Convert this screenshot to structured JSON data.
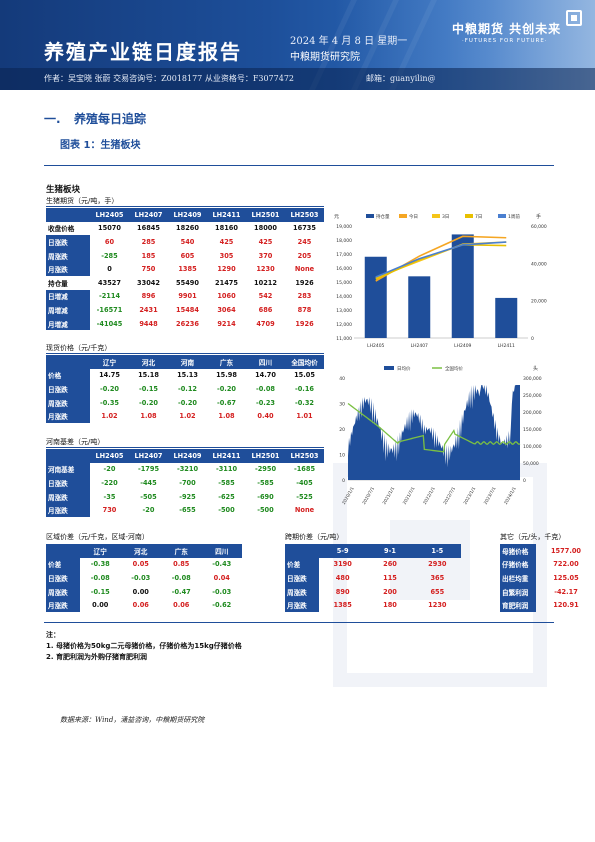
{
  "header": {
    "title": "养殖产业链日度报告",
    "date": "2024 年 4 月 8 日 星期一",
    "institute": "中粮期货研究院",
    "logo_cn": "中粮期货 共创未来",
    "logo_en": "·FUTURES FOR FUTURE·",
    "authors": "作者：吴宝晓   张蔚   交易咨询号：Z0018177 从业资格号：F3077472",
    "email": "邮箱：guanyilin@"
  },
  "section": {
    "number": "一.",
    "title": "养殖每日追踪"
  },
  "figure": {
    "title": "图表 1：生猪板块"
  },
  "panel": {
    "title": "生猪板块"
  },
  "futures": {
    "title": "生猪期货（元/吨，手）",
    "headers": [
      "",
      "LH2405",
      "LH2407",
      "LH2409",
      "LH2411",
      "LH2501",
      "LH2503"
    ],
    "rows": [
      {
        "label": "收盘价格",
        "values": [
          "15070",
          "16845",
          "18260",
          "18160",
          "18000",
          "16735"
        ],
        "colors": [
          "blk",
          "blk",
          "blk",
          "blk",
          "blk",
          "blk"
        ],
        "rlabel": false
      },
      {
        "label": "日涨跌",
        "values": [
          "60",
          "285",
          "540",
          "425",
          "425",
          "245"
        ],
        "colors": [
          "red",
          "red",
          "red",
          "red",
          "red",
          "red"
        ],
        "rlabel": true
      },
      {
        "label": "周涨跌",
        "values": [
          "-285",
          "185",
          "605",
          "305",
          "370",
          "205"
        ],
        "colors": [
          "green",
          "red",
          "red",
          "red",
          "red",
          "red"
        ],
        "rlabel": true
      },
      {
        "label": "月涨跌",
        "values": [
          "0",
          "750",
          "1385",
          "1290",
          "1230",
          "None"
        ],
        "colors": [
          "blk",
          "red",
          "red",
          "red",
          "red",
          "red"
        ],
        "rlabel": true
      },
      {
        "label": "持仓量",
        "values": [
          "43527",
          "33042",
          "55490",
          "21475",
          "10212",
          "1926"
        ],
        "colors": [
          "blk",
          "blk",
          "blk",
          "blk",
          "blk",
          "blk"
        ],
        "rlabel": false
      },
      {
        "label": "日增减",
        "values": [
          "-2114",
          "896",
          "9901",
          "1060",
          "542",
          "283"
        ],
        "colors": [
          "green",
          "red",
          "red",
          "red",
          "red",
          "red"
        ],
        "rlabel": true
      },
      {
        "label": "周增减",
        "values": [
          "-16571",
          "2431",
          "15484",
          "3064",
          "686",
          "878"
        ],
        "colors": [
          "green",
          "red",
          "red",
          "red",
          "red",
          "red"
        ],
        "rlabel": true
      },
      {
        "label": "月增减",
        "values": [
          "-41045",
          "9448",
          "26236",
          "9214",
          "4709",
          "1926"
        ],
        "colors": [
          "green",
          "red",
          "red",
          "red",
          "red",
          "red"
        ],
        "rlabel": true
      }
    ]
  },
  "spot": {
    "title": "现货价格（元/千克）",
    "headers": [
      "",
      "辽宁",
      "河北",
      "河南",
      "广东",
      "四川",
      "全国均价"
    ],
    "rows": [
      {
        "label": "价格",
        "values": [
          "14.75",
          "15.18",
          "15.13",
          "15.98",
          "14.70",
          "15.05"
        ],
        "colors": [
          "blk",
          "blk",
          "blk",
          "blk",
          "blk",
          "blk"
        ]
      },
      {
        "label": "日涨跌",
        "values": [
          "-0.20",
          "-0.15",
          "-0.12",
          "-0.20",
          "-0.08",
          "-0.16"
        ],
        "colors": [
          "green",
          "green",
          "green",
          "green",
          "green",
          "green"
        ]
      },
      {
        "label": "周涨跌",
        "values": [
          "-0.35",
          "-0.20",
          "-0.20",
          "-0.67",
          "-0.23",
          "-0.32"
        ],
        "colors": [
          "green",
          "green",
          "green",
          "green",
          "green",
          "green"
        ]
      },
      {
        "label": "月涨跌",
        "values": [
          "1.02",
          "1.08",
          "1.02",
          "1.08",
          "0.40",
          "1.01"
        ],
        "colors": [
          "red",
          "red",
          "red",
          "red",
          "red",
          "red"
        ]
      }
    ]
  },
  "basis": {
    "title": "河南基差（元/吨）",
    "headers": [
      "",
      "LH2405",
      "LH2407",
      "LH2409",
      "LH2411",
      "LH2501",
      "LH2503"
    ],
    "rows": [
      {
        "label": "河南基差",
        "values": [
          "-20",
          "-1795",
          "-3210",
          "-3110",
          "-2950",
          "-1685"
        ],
        "colors": [
          "green",
          "green",
          "green",
          "green",
          "green",
          "green"
        ]
      },
      {
        "label": "日涨跌",
        "values": [
          "-220",
          "-445",
          "-700",
          "-585",
          "-585",
          "-405"
        ],
        "colors": [
          "green",
          "green",
          "green",
          "green",
          "green",
          "green"
        ]
      },
      {
        "label": "周涨跌",
        "values": [
          "-35",
          "-505",
          "-925",
          "-625",
          "-690",
          "-525"
        ],
        "colors": [
          "green",
          "green",
          "green",
          "green",
          "green",
          "green"
        ]
      },
      {
        "label": "月涨跌",
        "values": [
          "730",
          "-20",
          "-655",
          "-500",
          "-500",
          "None"
        ],
        "colors": [
          "red",
          "green",
          "green",
          "green",
          "green",
          "red"
        ]
      }
    ]
  },
  "region_spread": {
    "title": "区域价差（元/千克，区域-河南）",
    "headers": [
      "",
      "辽宁",
      "河北",
      "广东",
      "四川"
    ],
    "rows": [
      {
        "label": "价差",
        "values": [
          "-0.38",
          "0.05",
          "0.85",
          "-0.43"
        ],
        "colors": [
          "green",
          "red",
          "red",
          "green"
        ]
      },
      {
        "label": "日涨跌",
        "values": [
          "-0.08",
          "-0.03",
          "-0.08",
          "0.04"
        ],
        "colors": [
          "green",
          "green",
          "green",
          "red"
        ]
      },
      {
        "label": "周涨跌",
        "values": [
          "-0.15",
          "0.00",
          "-0.47",
          "-0.03"
        ],
        "colors": [
          "green",
          "blk",
          "green",
          "green"
        ]
      },
      {
        "label": "月涨跌",
        "values": [
          "0.00",
          "0.06",
          "0.06",
          "-0.62"
        ],
        "colors": [
          "blk",
          "red",
          "red",
          "green"
        ]
      }
    ]
  },
  "calendar_spread": {
    "title": "跨期价差（元/吨）",
    "headers": [
      "",
      "5-9",
      "9-1",
      "1-5"
    ],
    "rows": [
      {
        "label": "价差",
        "values": [
          "3190",
          "260",
          "2930"
        ],
        "colors": [
          "red",
          "red",
          "red"
        ]
      },
      {
        "label": "日涨跌",
        "values": [
          "480",
          "115",
          "365"
        ],
        "colors": [
          "red",
          "red",
          "red"
        ]
      },
      {
        "label": "周涨跌",
        "values": [
          "890",
          "200",
          "655"
        ],
        "colors": [
          "red",
          "red",
          "red"
        ]
      },
      {
        "label": "月涨跌",
        "values": [
          "1385",
          "180",
          "1230"
        ],
        "colors": [
          "red",
          "red",
          "red"
        ]
      }
    ]
  },
  "other": {
    "title": "其它（元/头，千克）",
    "rows": [
      {
        "label": "母猪价格",
        "value": "1577.00"
      },
      {
        "label": "仔猪价格",
        "value": "722.00"
      },
      {
        "label": "出栏均重",
        "value": "125.05"
      },
      {
        "label": "自繁利润",
        "value": "-42.17"
      },
      {
        "label": "育肥利润",
        "value": "120.91"
      }
    ]
  },
  "notes": {
    "title": "注：",
    "items": [
      "1. 母猪价格为50kg二元母猪价格，仔猪价格为15kg仔猪价格",
      "2. 育肥利润为外购仔猪育肥利润"
    ]
  },
  "source": "数据来源：Wind，涌益咨询，中粮期货研究院",
  "colors": {
    "navy": "#1f4e9a",
    "up": "#d42020",
    "down": "#1f8a1f"
  },
  "chart_data": [
    {
      "type": "bar",
      "legend": [
        "持仓量",
        "今日",
        "3日",
        "7日",
        "1周前"
      ],
      "legend_colors": [
        "#1f4e9a",
        "#f5a623",
        "#f5c518",
        "#e8c000",
        "#4a7fd0"
      ],
      "categories": [
        "LH2405",
        "LH2407",
        "LH2409",
        "LH2411"
      ],
      "bar_values": [
        43527,
        33042,
        55490,
        21475
      ],
      "line_series": [
        {
          "name": "今日",
          "values": [
            15070,
            16845,
            18260,
            18160
          ]
        },
        {
          "name": "3日",
          "values": [
            15300,
            16500,
            17700,
            17850
          ]
        },
        {
          "name": "7日",
          "values": [
            15200,
            16600,
            17660,
            17600
          ]
        },
        {
          "name": "1周前",
          "values": [
            15355,
            16660,
            17655,
            17855
          ]
        }
      ],
      "y_left_ticks": [
        "19,000",
        "18,000",
        "17,000",
        "16,000",
        "15,000",
        "14,000",
        "13,000",
        "12,000",
        "11,000"
      ],
      "y_left_range": [
        11000,
        19000
      ],
      "y_right_ticks": [
        "60,000",
        "40,000",
        "20,000",
        "0"
      ],
      "y_right_range": [
        0,
        60000
      ],
      "left_unit": "元",
      "right_unit": "手"
    },
    {
      "type": "line",
      "legend": [
        "日均价",
        "全国均价"
      ],
      "x_ticks": [
        "2020/1/1",
        "2020/7/1",
        "2021/1/1",
        "2021/7/1",
        "2022/1/1",
        "2022/7/1",
        "2023/1/1",
        "2023/7/1",
        "2024/1/1"
      ],
      "y_left_ticks": [
        "40",
        "30",
        "20",
        "10",
        "0"
      ],
      "y_left_range": [
        0,
        40
      ],
      "y_right_ticks": [
        "300,000",
        "250,000",
        "200,000",
        "150,000",
        "100,000",
        "50,000",
        "0"
      ],
      "y_right_range": [
        0,
        300000
      ],
      "right_unit": "头"
    }
  ]
}
